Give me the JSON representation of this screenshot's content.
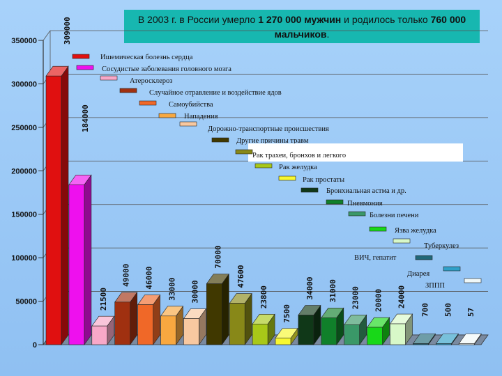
{
  "title": {
    "part1": "В 2003 г. в России умерло ",
    "bold1": "1 270 000 мужчин",
    "part2": " и родилось только ",
    "bold2": "760 000 мальчиков",
    "part3": "."
  },
  "chart_data": {
    "type": "bar",
    "title": "В 2003 г. в России умерло 1 270 000 мужчин и родилось только 760 000 мальчиков.",
    "ylim": [
      0,
      350000
    ],
    "yticks": [
      "0",
      "50000",
      "100000",
      "150000",
      "200000",
      "250000",
      "300000",
      "350000"
    ],
    "grid": true,
    "categories": [
      "Ишемическая болезнь сердца",
      "Сосудистые заболевания головного мозга",
      "Атеросклероз",
      "Случайное отравление и воздействие ядов",
      "Самоубийства",
      "Нападения",
      "Дорожно-транспортные происшествия",
      "Другие причины травм",
      "Рак трахеи, бронхов и легкого",
      "Рак желудка",
      "Рак простаты",
      "Бронхиальная астма и др.",
      "Пневмония",
      "Болезни печени",
      "Язва желудка",
      "Туберкулез",
      "ВИЧ, гепатит",
      "Диарея",
      "ЗППП"
    ],
    "values": [
      309000,
      184000,
      21500,
      49000,
      46000,
      33000,
      30000,
      70000,
      47600,
      23800,
      7500,
      34000,
      31000,
      23000,
      20000,
      24000,
      700,
      500,
      57
    ],
    "value_labels": [
      "309000",
      "184000",
      "21500",
      "49000",
      "46000",
      "33000",
      "30000",
      "70000",
      "47600",
      "23800",
      "7500",
      "34000",
      "31000",
      "23000",
      "20000",
      "24000",
      "700",
      "500",
      "57"
    ],
    "colors": [
      "#e01010",
      "#ee10ee",
      "#f8a8c8",
      "#a03010",
      "#f06828",
      "#f8a840",
      "#f8c8a0",
      "#403800",
      "#888818",
      "#a8c818",
      "#f8f830",
      "#103818",
      "#10802a",
      "#3a9868",
      "#18d818",
      "#d8f8c8",
      "#206878",
      "#30a0c8",
      "#f0f8f8"
    ]
  }
}
